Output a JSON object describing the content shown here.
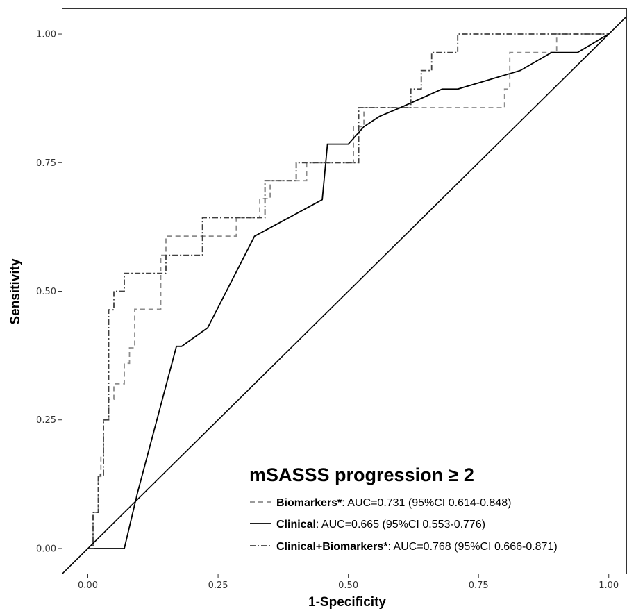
{
  "chart_data": {
    "type": "line",
    "xlabel": "1-Specificity",
    "ylabel": "Sensitivity",
    "xlim": [
      -0.05,
      1.035
    ],
    "ylim": [
      -0.05,
      1.05
    ],
    "x_ticks": [
      "0.00",
      "0.25",
      "0.50",
      "0.75",
      "1.00"
    ],
    "y_ticks": [
      "0.00",
      "0.25",
      "0.50",
      "0.75",
      "1.00"
    ],
    "grid": false,
    "legend": {
      "title": "mSASSS progression ≥ 2",
      "position": "bottom-right",
      "entries": [
        {
          "name": "Biomarkers*",
          "text": ": AUC=0.731  (95%CI  0.614-0.848)"
        },
        {
          "name": "Clinical",
          "text": ": AUC=0.665  (95%CI  0.553-0.776)"
        },
        {
          "name": "Clinical+Biomarkers*",
          "text": ": AUC=0.768  (95%CI  0.666-0.871)"
        }
      ]
    },
    "series": [
      {
        "name": "Biomarkers*",
        "style": "dashed",
        "color": "#8c8c8c",
        "points": [
          [
            0,
            0
          ],
          [
            0.01,
            0
          ],
          [
            0.01,
            0.07
          ],
          [
            0.02,
            0.07
          ],
          [
            0.02,
            0.14
          ],
          [
            0.025,
            0.14
          ],
          [
            0.025,
            0.18
          ],
          [
            0.03,
            0.18
          ],
          [
            0.03,
            0.25
          ],
          [
            0.04,
            0.25
          ],
          [
            0.04,
            0.29
          ],
          [
            0.05,
            0.29
          ],
          [
            0.05,
            0.32
          ],
          [
            0.07,
            0.32
          ],
          [
            0.07,
            0.36
          ],
          [
            0.08,
            0.36
          ],
          [
            0.08,
            0.39
          ],
          [
            0.09,
            0.39
          ],
          [
            0.09,
            0.465
          ],
          [
            0.14,
            0.465
          ],
          [
            0.14,
            0.57
          ],
          [
            0.15,
            0.57
          ],
          [
            0.15,
            0.607
          ],
          [
            0.285,
            0.607
          ],
          [
            0.285,
            0.643
          ],
          [
            0.33,
            0.643
          ],
          [
            0.33,
            0.68
          ],
          [
            0.35,
            0.68
          ],
          [
            0.35,
            0.715
          ],
          [
            0.42,
            0.715
          ],
          [
            0.42,
            0.75
          ],
          [
            0.51,
            0.75
          ],
          [
            0.51,
            0.82
          ],
          [
            0.53,
            0.82
          ],
          [
            0.53,
            0.857
          ],
          [
            0.8,
            0.857
          ],
          [
            0.8,
            0.893
          ],
          [
            0.81,
            0.893
          ],
          [
            0.81,
            0.964
          ],
          [
            0.9,
            0.964
          ],
          [
            0.9,
            1.0
          ],
          [
            1.0,
            1.0
          ]
        ]
      },
      {
        "name": "Clinical",
        "style": "solid",
        "color": "#000000",
        "points": [
          [
            0,
            0
          ],
          [
            0.07,
            0
          ],
          [
            0.095,
            0.107
          ],
          [
            0.17,
            0.393
          ],
          [
            0.18,
            0.393
          ],
          [
            0.23,
            0.429
          ],
          [
            0.32,
            0.607
          ],
          [
            0.45,
            0.678
          ],
          [
            0.46,
            0.786
          ],
          [
            0.5,
            0.786
          ],
          [
            0.53,
            0.82
          ],
          [
            0.56,
            0.84
          ],
          [
            0.6,
            0.857
          ],
          [
            0.68,
            0.893
          ],
          [
            0.71,
            0.893
          ],
          [
            0.83,
            0.929
          ],
          [
            0.89,
            0.964
          ],
          [
            0.94,
            0.964
          ],
          [
            1.0,
            1.0
          ]
        ]
      },
      {
        "name": "Clinical+Biomarkers*",
        "style": "dashdot",
        "color": "#404040",
        "points": [
          [
            0,
            0
          ],
          [
            0.01,
            0
          ],
          [
            0.01,
            0.07
          ],
          [
            0.02,
            0.07
          ],
          [
            0.02,
            0.143
          ],
          [
            0.03,
            0.143
          ],
          [
            0.03,
            0.25
          ],
          [
            0.04,
            0.25
          ],
          [
            0.04,
            0.464
          ],
          [
            0.05,
            0.464
          ],
          [
            0.05,
            0.5
          ],
          [
            0.07,
            0.5
          ],
          [
            0.07,
            0.535
          ],
          [
            0.15,
            0.535
          ],
          [
            0.15,
            0.57
          ],
          [
            0.22,
            0.57
          ],
          [
            0.22,
            0.643
          ],
          [
            0.34,
            0.643
          ],
          [
            0.34,
            0.715
          ],
          [
            0.4,
            0.715
          ],
          [
            0.4,
            0.75
          ],
          [
            0.52,
            0.75
          ],
          [
            0.52,
            0.857
          ],
          [
            0.62,
            0.857
          ],
          [
            0.62,
            0.893
          ],
          [
            0.64,
            0.893
          ],
          [
            0.64,
            0.929
          ],
          [
            0.66,
            0.929
          ],
          [
            0.66,
            0.964
          ],
          [
            0.71,
            0.964
          ],
          [
            0.71,
            1.0
          ],
          [
            1.0,
            1.0
          ]
        ]
      },
      {
        "name": "",
        "style": "solid",
        "color": "#000000",
        "role": "reference-diagonal",
        "points": [
          [
            -0.05,
            -0.05
          ],
          [
            1.035,
            1.035
          ]
        ]
      }
    ]
  }
}
